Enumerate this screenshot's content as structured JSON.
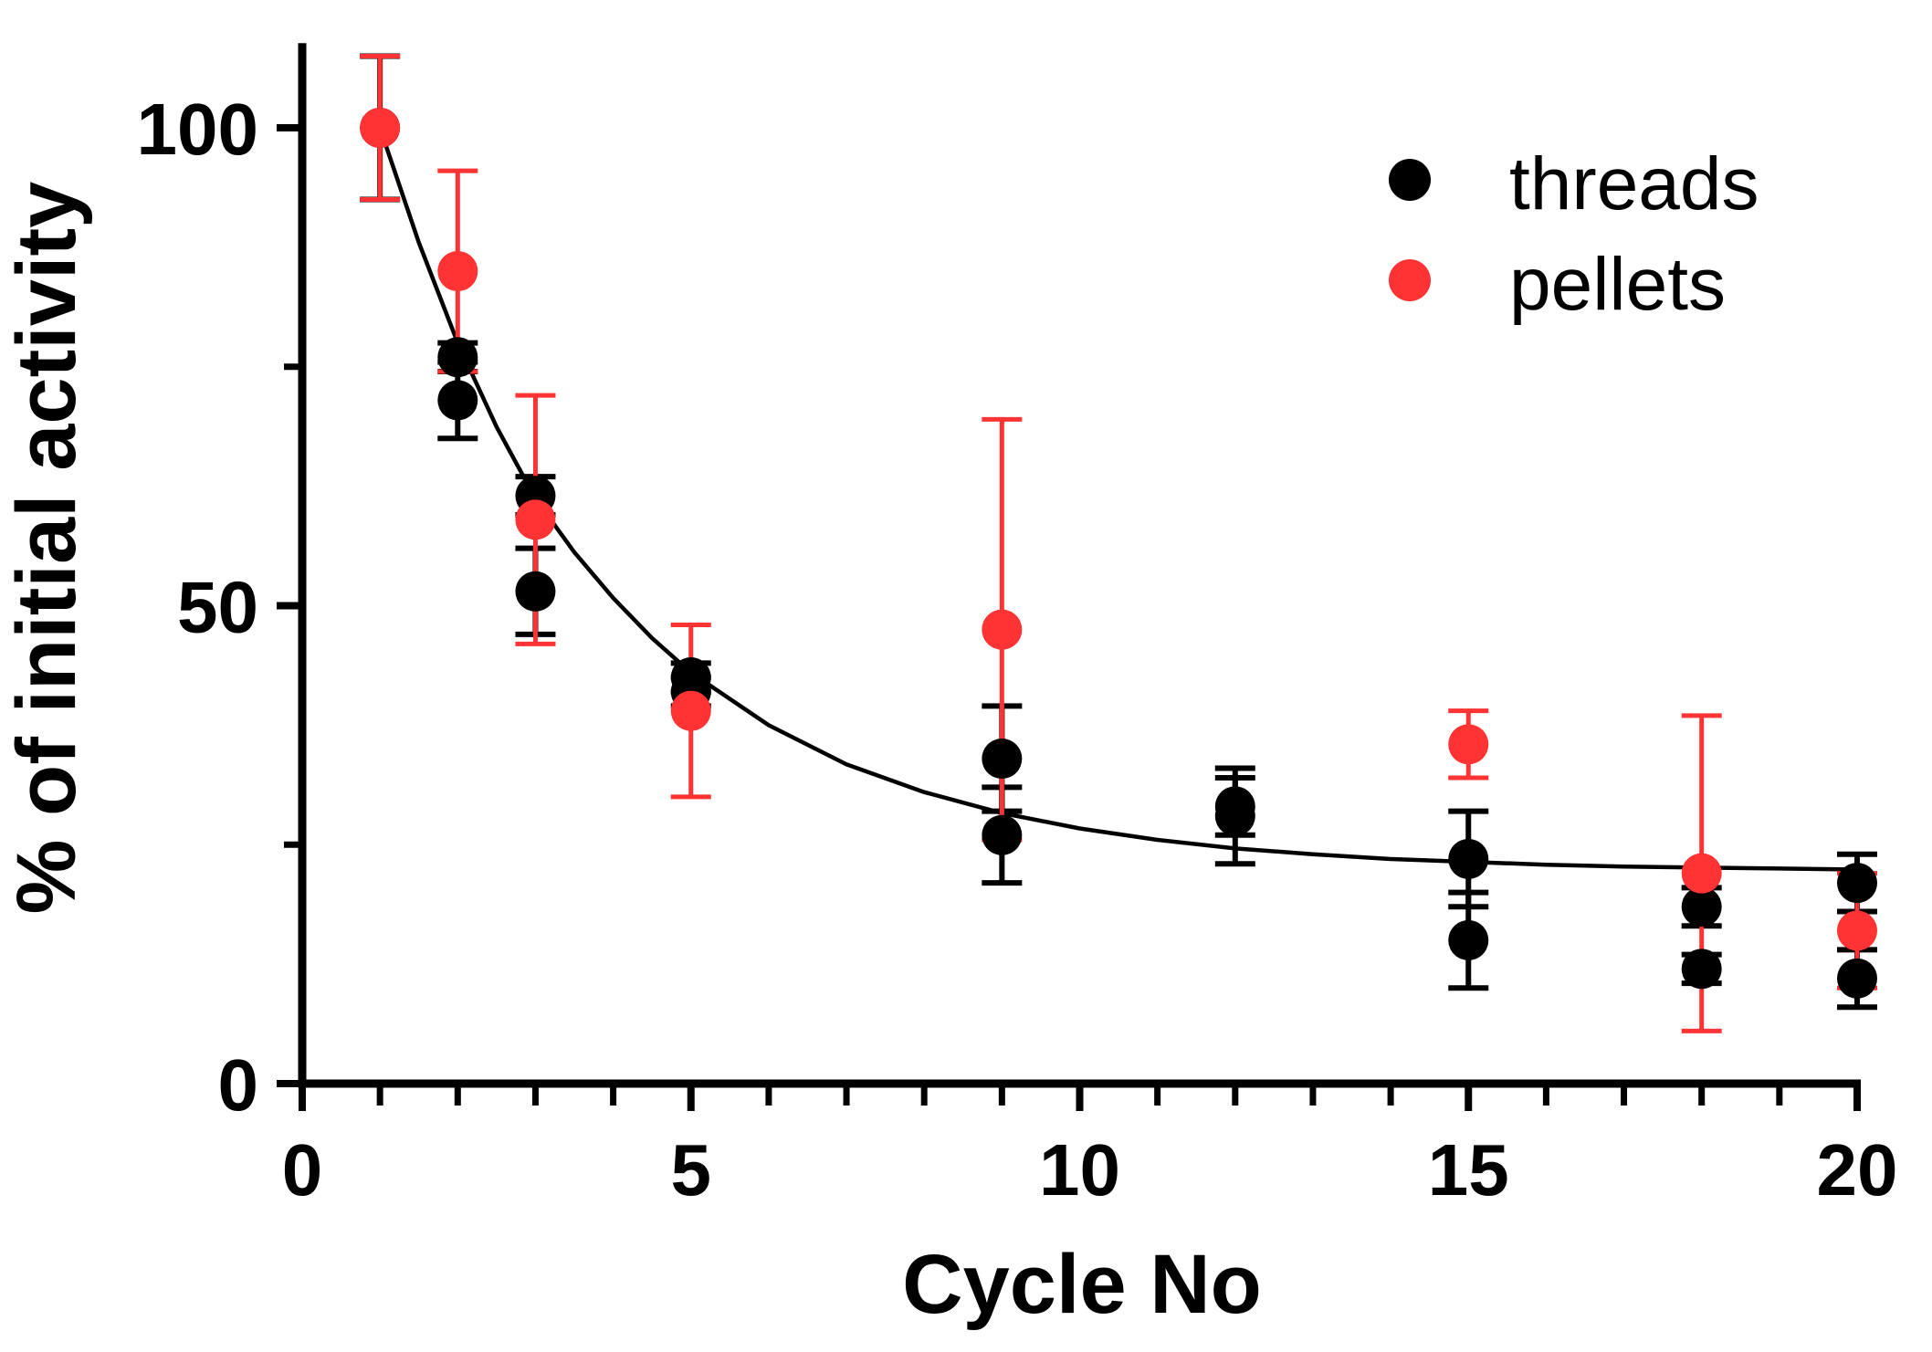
{
  "chart_data": {
    "type": "scatter",
    "title": "",
    "xlabel": "Cycle No",
    "ylabel": "% of initial activity",
    "xlim": [
      0,
      20
    ],
    "ylim": [
      0,
      110
    ],
    "x_ticks": [
      0,
      5,
      10,
      15,
      20
    ],
    "x_tick_labels": [
      "0",
      "5",
      "10",
      "15",
      "20"
    ],
    "x_minor_ticks": [
      1,
      2,
      3,
      4,
      6,
      7,
      8,
      9,
      11,
      12,
      13,
      14,
      16,
      17,
      18,
      19
    ],
    "y_ticks": [
      0,
      50,
      100
    ],
    "y_tick_labels": [
      "0",
      "50",
      "100"
    ],
    "y_minor_ticks": [
      25,
      75
    ],
    "grid": false,
    "legend_position": "top-right",
    "series": [
      {
        "name": "threads",
        "color": "#000000",
        "points": [
          {
            "x": 1,
            "y": 100,
            "err": 7.5
          },
          {
            "x": 2,
            "y": 76,
            "err": 1.5
          },
          {
            "x": 2,
            "y": 71.5,
            "err": 4
          },
          {
            "x": 3,
            "y": 61.5,
            "err": 2
          },
          {
            "x": 3,
            "y": 51.5,
            "err": 4.5
          },
          {
            "x": 5,
            "y": 42.5,
            "err": 1.5
          },
          {
            "x": 5,
            "y": 41,
            "err": 1.5
          },
          {
            "x": 9,
            "y": 34,
            "err": 5.5
          },
          {
            "x": 9,
            "y": 26,
            "err": 5
          },
          {
            "x": 12,
            "y": 29,
            "err": 3
          },
          {
            "x": 12,
            "y": 28,
            "err": 5
          },
          {
            "x": 15,
            "y": 23.5,
            "err": 5
          },
          {
            "x": 15,
            "y": 15,
            "err": 5
          },
          {
            "x": 18,
            "y": 18.5,
            "err": 2
          },
          {
            "x": 18,
            "y": 12,
            "err": 1.5
          },
          {
            "x": 20,
            "y": 21,
            "err": 3
          },
          {
            "x": 20,
            "y": 11,
            "err": 3
          }
        ]
      },
      {
        "name": "pellets",
        "color": "#ff3333",
        "points": [
          {
            "x": 1,
            "y": 100,
            "err": 7.5
          },
          {
            "x": 2,
            "y": 85,
            "err": 10.5
          },
          {
            "x": 3,
            "y": 59,
            "err": 13
          },
          {
            "x": 5,
            "y": 39,
            "err": 9
          },
          {
            "x": 9,
            "y": 47.5,
            "err": 22
          },
          {
            "x": 15,
            "y": 35.5,
            "err": 3.5
          },
          {
            "x": 18,
            "y": 22,
            "err": 16.5
          },
          {
            "x": 20,
            "y": 16,
            "err": 6
          }
        ]
      }
    ],
    "fit_curve": {
      "model": "one-phase exponential decay",
      "color": "#000000",
      "points": [
        {
          "x": 1,
          "y": 100
        },
        {
          "x": 1.5,
          "y": 88
        },
        {
          "x": 2,
          "y": 77.5
        },
        {
          "x": 2.5,
          "y": 68.7
        },
        {
          "x": 3,
          "y": 61.2
        },
        {
          "x": 3.5,
          "y": 55.6
        },
        {
          "x": 4,
          "y": 50.8
        },
        {
          "x": 4.5,
          "y": 46.6
        },
        {
          "x": 5,
          "y": 43
        },
        {
          "x": 6,
          "y": 37.5
        },
        {
          "x": 7,
          "y": 33.4
        },
        {
          "x": 8,
          "y": 30.5
        },
        {
          "x": 9,
          "y": 28.3
        },
        {
          "x": 10,
          "y": 26.7
        },
        {
          "x": 11,
          "y": 25.5
        },
        {
          "x": 12,
          "y": 24.6
        },
        {
          "x": 13,
          "y": 24
        },
        {
          "x": 14,
          "y": 23.5
        },
        {
          "x": 15,
          "y": 23.2
        },
        {
          "x": 16,
          "y": 22.9
        },
        {
          "x": 17,
          "y": 22.7
        },
        {
          "x": 18,
          "y": 22.6
        },
        {
          "x": 19,
          "y": 22.5
        },
        {
          "x": 20,
          "y": 22.4
        }
      ]
    }
  }
}
